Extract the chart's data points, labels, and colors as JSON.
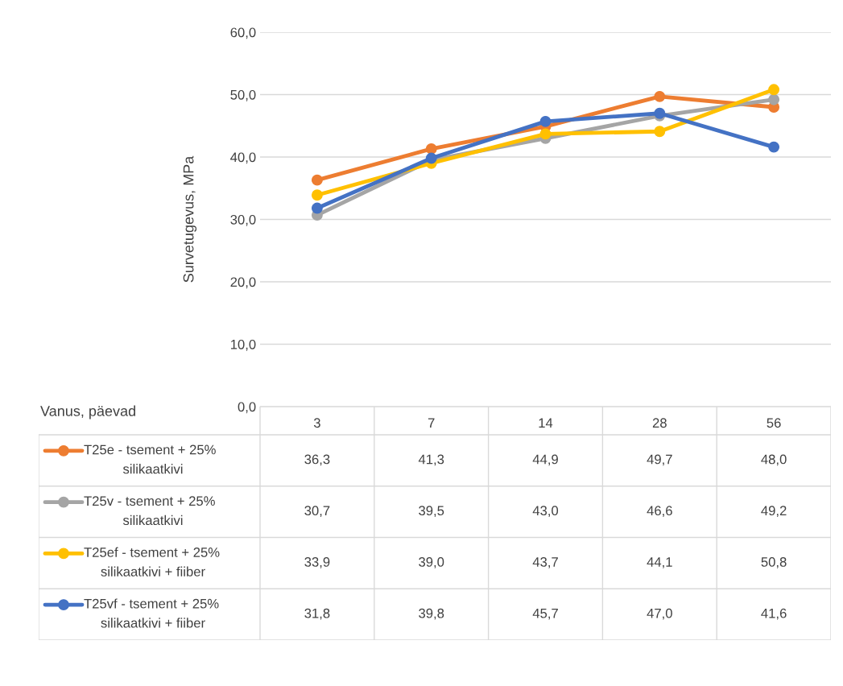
{
  "chart_data": {
    "type": "line",
    "ylabel": "Survetugevus, MPa",
    "annotations": [
      "Vanus, päevad"
    ],
    "categories": [
      "3",
      "7",
      "14",
      "28",
      "56"
    ],
    "series": [
      {
        "name": "T25e - tsement + 25% silikaatkivi",
        "color": "#ed7d31",
        "values": [
          36.3,
          41.3,
          44.9,
          49.7,
          48.0
        ],
        "value_labels": [
          "36,3",
          "41,3",
          "44,9",
          "49,7",
          "48,0"
        ]
      },
      {
        "name": "T25v - tsement + 25% silikaatkivi",
        "color": "#a5a5a5",
        "values": [
          30.7,
          39.5,
          43.0,
          46.6,
          49.2
        ],
        "value_labels": [
          "30,7",
          "39,5",
          "43,0",
          "46,6",
          "49,2"
        ]
      },
      {
        "name": "T25ef - tsement + 25% silikaatkivi + fiiber",
        "color": "#ffc000",
        "values": [
          33.9,
          39.0,
          43.7,
          44.1,
          50.8
        ],
        "value_labels": [
          "33,9",
          "39,0",
          "43,7",
          "44,1",
          "50,8"
        ]
      },
      {
        "name": "T25vf - tsement + 25% silikaatkivi + fiiber",
        "color": "#4472c4",
        "values": [
          31.8,
          39.8,
          45.7,
          47.0,
          41.6
        ],
        "value_labels": [
          "31,8",
          "39,8",
          "45,7",
          "47,0",
          "41,6"
        ]
      }
    ],
    "ylim": [
      0,
      60
    ],
    "yticks": [
      {
        "value": 0,
        "label": "0,0"
      },
      {
        "value": 10,
        "label": "10,0"
      },
      {
        "value": 20,
        "label": "20,0"
      },
      {
        "value": 30,
        "label": "30,0"
      },
      {
        "value": 40,
        "label": "40,0"
      },
      {
        "value": 50,
        "label": "50,0"
      },
      {
        "value": 60,
        "label": "60,0"
      }
    ],
    "grid": "y",
    "marker": "circle",
    "line_style": "solid",
    "legend": "bottom"
  }
}
